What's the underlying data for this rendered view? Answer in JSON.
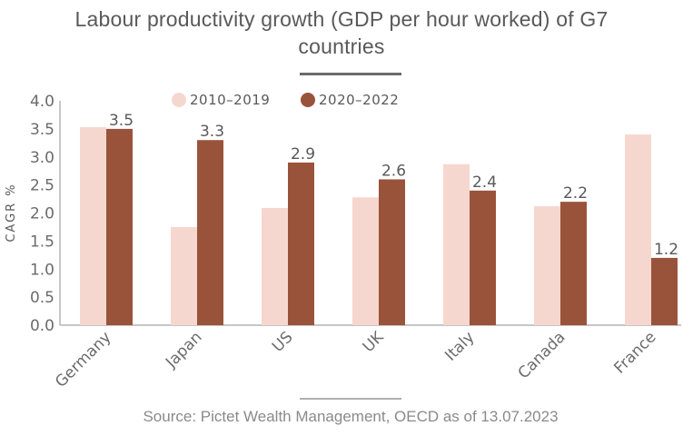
{
  "colors": {
    "series_light": "#f6d7cf",
    "series_dark": "#9a533b",
    "axis": "#b3b3b3",
    "text": "#6b6b6b"
  },
  "chart_data": {
    "type": "bar",
    "title": "Labour productivity growth (GDP per hour worked) of G7 countries",
    "xlabel": "",
    "ylabel": "CAGR %",
    "ylim": [
      0,
      4.0
    ],
    "yticks": [
      "0.0",
      "0.5",
      "1.0",
      "1.5",
      "2.0",
      "2.5",
      "3.0",
      "3.5",
      "4.0"
    ],
    "grid": false,
    "legend_position": "top-center",
    "categories": [
      "Germany",
      "Japan",
      "US",
      "UK",
      "Italy",
      "Canada",
      "France"
    ],
    "series": [
      {
        "name": "2010–2019",
        "values": [
          3.53,
          1.75,
          2.09,
          2.28,
          2.87,
          2.12,
          3.4
        ],
        "labeled": false
      },
      {
        "name": "2020–2022",
        "values": [
          3.5,
          3.3,
          2.9,
          2.6,
          2.4,
          2.2,
          1.2
        ],
        "labels": [
          "3.5",
          "3.3",
          "2.9",
          "2.6",
          "2.4",
          "2.2",
          "1.2"
        ],
        "labeled": true
      }
    ],
    "source": "Source: Pictet Wealth Management, OECD as of 13.07.2023"
  },
  "title_line1": "Labour productivity growth (GDP per hour worked) of G7",
  "title_line2": "countries"
}
